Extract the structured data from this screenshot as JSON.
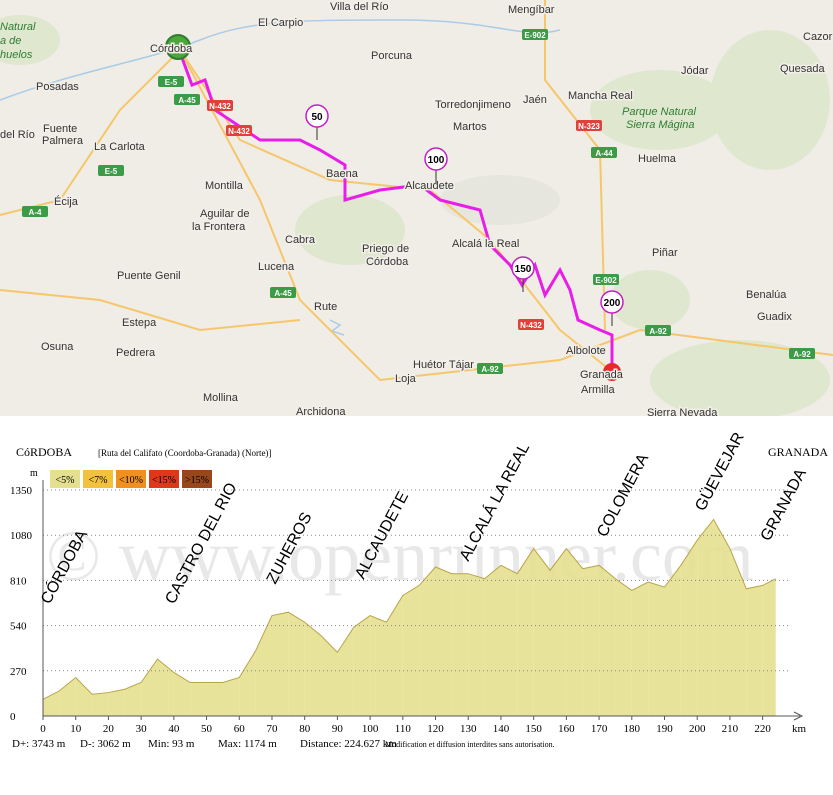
{
  "map": {
    "places": [
      "Villa del Río",
      "El Carpio",
      "Mengíbar",
      "Córdoba",
      "Porcuna",
      "Jódar",
      "Cazorla",
      "Quesada",
      "Posadas",
      "Jaén",
      "Mancha Real",
      "Torredonjimeno",
      "Fuente",
      "Palmera",
      "del Río",
      "Martos",
      "La Carlota",
      "Huelma",
      "Baena",
      "Alcaudete",
      "Montilla",
      "Écija",
      "Aguilar de",
      "la Frontera",
      "Cabra",
      "Alcalá la Real",
      "Priego de",
      "Córdoba",
      "Piñar",
      "Puente Genil",
      "Lucena",
      "Benalúa",
      "Rute",
      "Guadix",
      "Estepa",
      "Pedrera",
      "Osuna",
      "Albolote",
      "Huétor Tájar",
      "Loja",
      "Granada",
      "Armilla",
      "Mollina",
      "Archidona",
      "Sierra Nevada"
    ],
    "parks": [
      "Parque Natural",
      "Sierra Mágina",
      "Natural",
      "a de",
      "huelos"
    ],
    "roads": [
      "E-5",
      "A-45",
      "N-432",
      "N-432",
      "E-5",
      "A-4",
      "E-902",
      "N-323",
      "A-44",
      "A-45",
      "E-902",
      "N-432",
      "A-92",
      "A-92",
      "A-92"
    ],
    "distance_markers": [
      50,
      100,
      150,
      200
    ]
  },
  "chart_data": {
    "type": "area",
    "start_label": "CóRDOBA",
    "title": "[Ruta del Califato (Coordoba-Granada) (Norte)]",
    "end_label": "GRANADA",
    "y_label": "m",
    "x_label": "km",
    "watermark": "© www.openrunner.com",
    "xlim": [
      0,
      225
    ],
    "ylim": [
      0,
      1350
    ],
    "xticks": [
      0,
      10,
      20,
      30,
      40,
      50,
      60,
      70,
      80,
      90,
      100,
      110,
      120,
      130,
      140,
      150,
      160,
      170,
      180,
      190,
      200,
      210,
      220
    ],
    "yticks": [
      0,
      270,
      540,
      810,
      1080,
      1350
    ],
    "grid": true,
    "x": [
      0,
      5,
      10,
      15,
      20,
      25,
      30,
      35,
      40,
      45,
      50,
      55,
      60,
      65,
      70,
      75,
      80,
      85,
      90,
      95,
      100,
      105,
      110,
      115,
      120,
      125,
      130,
      135,
      140,
      145,
      150,
      155,
      160,
      165,
      170,
      175,
      180,
      185,
      190,
      195,
      200,
      205,
      210,
      215,
      220,
      224
    ],
    "values": [
      100,
      150,
      230,
      130,
      140,
      160,
      200,
      340,
      260,
      200,
      200,
      200,
      230,
      390,
      600,
      620,
      560,
      480,
      380,
      530,
      600,
      560,
      720,
      780,
      890,
      850,
      850,
      820,
      900,
      850,
      1000,
      870,
      1000,
      880,
      900,
      820,
      750,
      800,
      770,
      900,
      1050,
      1174,
      1000,
      760,
      780,
      820
    ],
    "grades": [
      {
        "label": "<5%",
        "max": 5,
        "color": "#e5e08f"
      },
      {
        "label": "<7%",
        "max": 7,
        "color": "#f2c23e"
      },
      {
        "label": "<10%",
        "max": 10,
        "color": "#f0901f"
      },
      {
        "label": "<15%",
        "max": 15,
        "color": "#e2361b"
      },
      {
        "label": ">15%",
        "color": "#98461c"
      }
    ],
    "annotations": [
      {
        "text": "CÓRDOBA",
        "x": 2
      },
      {
        "text": "CASTRO DEL RIO",
        "x": 40
      },
      {
        "text": "ZUHEROS",
        "x": 71
      },
      {
        "text": "ALCAUDETE",
        "x": 98
      },
      {
        "text": "ALCALÁ LA REAL",
        "x": 130
      },
      {
        "text": "COLOMERA",
        "x": 172
      },
      {
        "text": "GÜEVEJAR",
        "x": 202
      },
      {
        "text": "GRANADA",
        "x": 222
      }
    ],
    "stats": [
      "D+: 3743 m",
      "D-: 3062 m",
      "Min: 93 m",
      "Max: 1174 m",
      "Distance: 224.627 km"
    ],
    "note": "Modification et diffusion interdites sans autorisation."
  }
}
